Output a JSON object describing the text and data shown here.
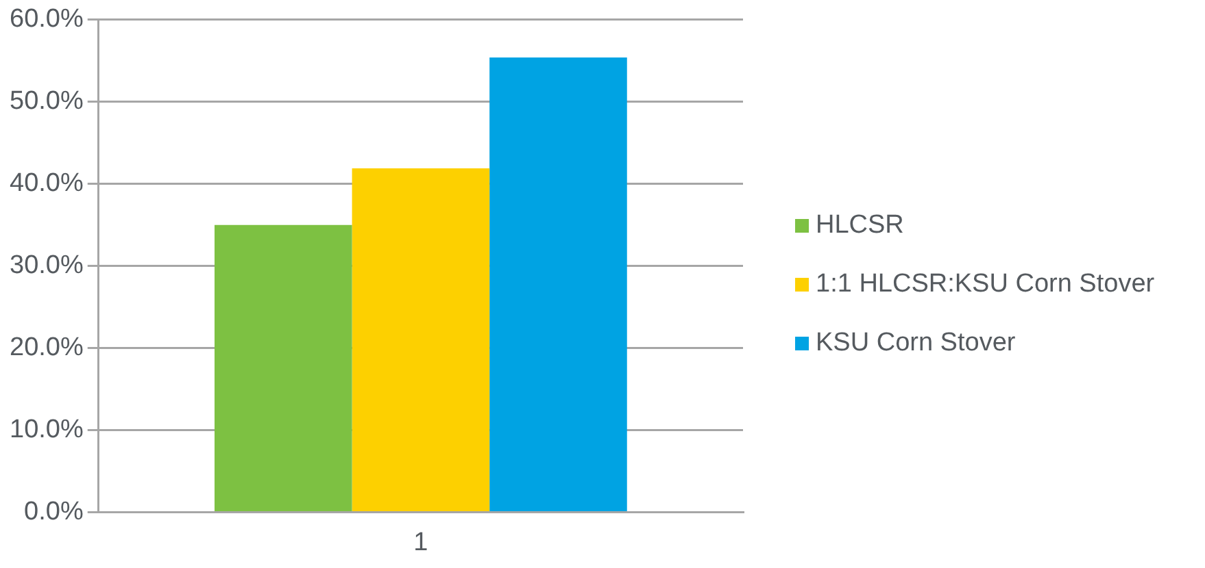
{
  "chart_data": {
    "type": "bar",
    "categories": [
      "1"
    ],
    "series": [
      {
        "name": "HLCSR",
        "color": "#7dc142",
        "values": [
          35.0
        ]
      },
      {
        "name": "1:1 HLCSR:KSU Corn Stover",
        "color": "#fdd000",
        "values": [
          41.9
        ]
      },
      {
        "name": "KSU Corn Stover",
        "color": "#00a3e3",
        "values": [
          55.4
        ]
      }
    ],
    "ylim": [
      0,
      60
    ],
    "yticks": [
      {
        "value": 0,
        "label": "0.0%"
      },
      {
        "value": 10,
        "label": "10.0%"
      },
      {
        "value": 20,
        "label": "20.0%"
      },
      {
        "value": 30,
        "label": "30.0%"
      },
      {
        "value": 40,
        "label": "40.0%"
      },
      {
        "value": 50,
        "label": "50.0%"
      },
      {
        "value": 60,
        "label": "60.0%"
      }
    ],
    "grid": "y",
    "legend": "right"
  }
}
